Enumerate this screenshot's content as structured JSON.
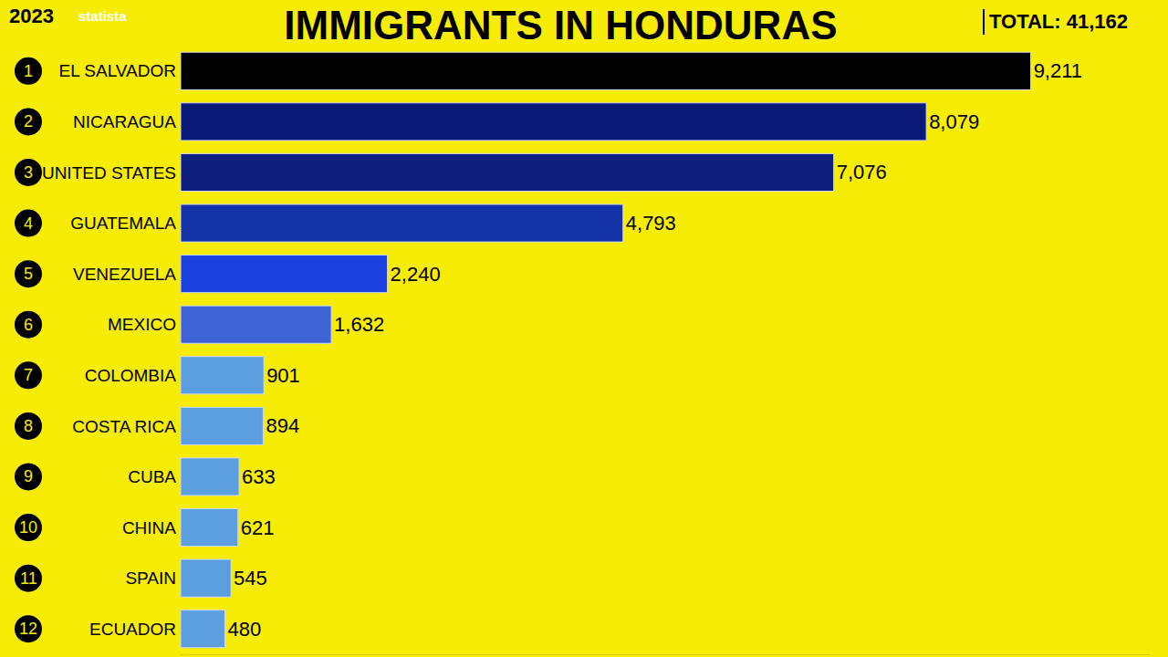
{
  "chart_data": {
    "type": "bar",
    "orientation": "horizontal",
    "title": "IMMIGRANTS IN HONDURAS",
    "annotations": [
      "2023",
      "statista",
      "TOTAL: 41,162"
    ],
    "ranks": [
      1,
      2,
      3,
      4,
      5,
      6,
      7,
      8,
      9,
      10,
      11,
      12
    ],
    "categories": [
      "EL SALVADOR",
      "NICARAGUA",
      "UNITED STATES",
      "GUATEMALA",
      "VENEZUELA",
      "MEXICO",
      "COLOMBIA",
      "COSTA RICA",
      "CUBA",
      "CHINA",
      "SPAIN",
      "ECUADOR"
    ],
    "values": [
      9211,
      8079,
      7076,
      4793,
      2240,
      1632,
      901,
      894,
      633,
      621,
      545,
      480
    ],
    "value_labels": [
      "9,211",
      "8,079",
      "7,076",
      "4,793",
      "2,240",
      "1,632",
      "901",
      "894",
      "633",
      "621",
      "545",
      "480"
    ],
    "colors": [
      "#000000",
      "#0b1a78",
      "#0e1f7e",
      "#1433a8",
      "#1a40e0",
      "#3d63d6",
      "#5b9fe0",
      "#5b9fe0",
      "#5b9fe0",
      "#5b9fe0",
      "#5b9fe0",
      "#5b9fe0"
    ],
    "xlim": [
      0,
      10500
    ],
    "data_labels": true,
    "tick_labels": "y",
    "grid": false
  }
}
